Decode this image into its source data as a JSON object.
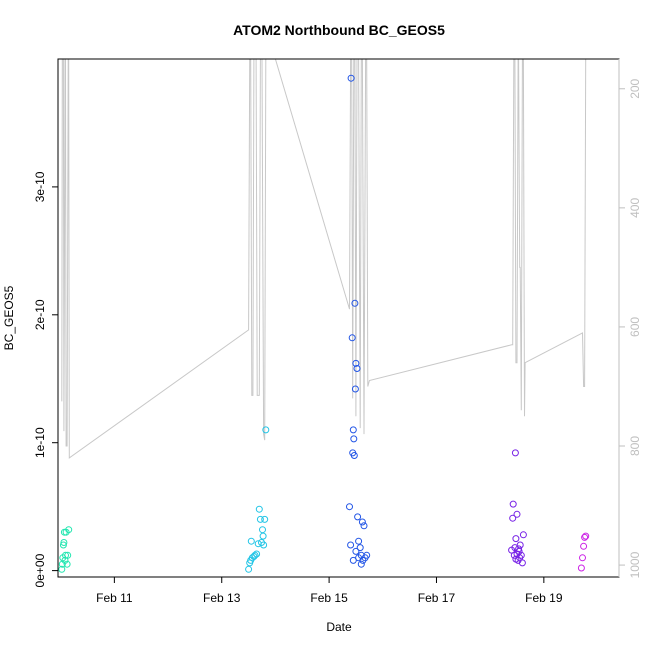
{
  "chart_data": {
    "type": "scatter",
    "title": "ATOM2 Northbound BC_GEOS5",
    "xlabel": "Date",
    "ylabel": "BC_GEOS5",
    "x_ticks": [
      "Feb 11",
      "Feb 13",
      "Feb 15",
      "Feb 17",
      "Feb 19"
    ],
    "y_ticks": [
      "0e+00",
      "1e-10",
      "2e-10",
      "3e-10"
    ],
    "right_ticks": [
      "200",
      "400",
      "600",
      "800",
      "1000"
    ],
    "xlim": [
      9.95,
      20.4
    ],
    "ylim": [
      -5e-12,
      4e-10
    ],
    "right_ylim": [
      1020,
      150
    ],
    "right_axis_inverted": true,
    "grid": false,
    "colors": {
      "background": "#ffffff",
      "pressure_line": "#c8c8c8",
      "axis": "#000000",
      "right_axis": "#bfbfbf"
    },
    "scatter_series": [
      {
        "color": "#22e6b0",
        "points": [
          [
            10.02,
            1e-12
          ],
          [
            10.03,
            5e-12
          ],
          [
            10.04,
            1e-11
          ],
          [
            10.05,
            2e-11
          ],
          [
            10.06,
            2.2e-11
          ],
          [
            10.07,
            3e-11
          ],
          [
            10.08,
            8e-12
          ],
          [
            10.09,
            1.2e-11
          ],
          [
            10.1,
            3e-11
          ],
          [
            10.12,
            5e-12
          ],
          [
            10.13,
            1.2e-11
          ],
          [
            10.15,
            3.2e-11
          ]
        ]
      },
      {
        "color": "#22c5e6",
        "points": [
          [
            13.5,
            1e-12
          ],
          [
            13.52,
            6e-12
          ],
          [
            13.54,
            8e-12
          ],
          [
            13.55,
            2.3e-11
          ],
          [
            13.57,
            1e-11
          ],
          [
            13.6,
            1.1e-11
          ],
          [
            13.62,
            1.2e-11
          ],
          [
            13.65,
            1.3e-11
          ],
          [
            13.68,
            2.1e-11
          ],
          [
            13.7,
            4.8e-11
          ],
          [
            13.72,
            4e-11
          ],
          [
            13.74,
            2.2e-11
          ],
          [
            13.76,
            3.2e-11
          ],
          [
            13.77,
            2.7e-11
          ],
          [
            13.78,
            2e-11
          ],
          [
            13.8,
            4e-11
          ],
          [
            13.82,
            1.1e-10
          ]
        ]
      },
      {
        "color": "#2255e6",
        "points": [
          [
            15.38,
            5e-11
          ],
          [
            15.4,
            2e-11
          ],
          [
            15.41,
            3.85e-10
          ],
          [
            15.43,
            1.82e-10
          ],
          [
            15.44,
            9.2e-11
          ],
          [
            15.45,
            1.1e-10
          ],
          [
            15.46,
            1.03e-10
          ],
          [
            15.47,
            9e-11
          ],
          [
            15.48,
            2.09e-10
          ],
          [
            15.49,
            1.42e-10
          ],
          [
            15.5,
            1.62e-10
          ],
          [
            15.52,
            1.58e-10
          ],
          [
            15.53,
            4.2e-11
          ],
          [
            15.55,
            2.3e-11
          ],
          [
            15.58,
            1.8e-11
          ],
          [
            15.6,
            1.2e-11
          ],
          [
            15.62,
            3.8e-11
          ],
          [
            15.63,
            8e-12
          ],
          [
            15.65,
            3.5e-11
          ],
          [
            15.67,
            1e-11
          ],
          [
            15.45,
            8e-12
          ],
          [
            15.5,
            1.5e-11
          ],
          [
            15.55,
            1e-11
          ],
          [
            15.6,
            5e-12
          ],
          [
            15.7,
            1.2e-11
          ]
        ]
      },
      {
        "color": "#7722e6",
        "points": [
          [
            18.4,
            1.6e-11
          ],
          [
            18.42,
            4.1e-11
          ],
          [
            18.43,
            5.2e-11
          ],
          [
            18.45,
            1.2e-11
          ],
          [
            18.46,
            1.8e-11
          ],
          [
            18.47,
            9.2e-11
          ],
          [
            18.48,
            2.5e-11
          ],
          [
            18.5,
            4.4e-11
          ],
          [
            18.52,
            8e-12
          ],
          [
            18.54,
            1.5e-11
          ],
          [
            18.55,
            1e-11
          ],
          [
            18.56,
            2e-11
          ],
          [
            18.58,
            1.2e-11
          ],
          [
            18.6,
            6e-12
          ],
          [
            18.62,
            2.8e-11
          ],
          [
            18.48,
            9e-12
          ],
          [
            18.5,
            1.3e-11
          ],
          [
            18.53,
            1.7e-11
          ]
        ]
      },
      {
        "color": "#cc22e6",
        "points": [
          [
            19.7,
            2e-12
          ],
          [
            19.72,
            1e-11
          ],
          [
            19.74,
            1.9e-11
          ],
          [
            19.76,
            2.6e-11
          ],
          [
            19.78,
            2.7e-11
          ]
        ]
      }
    ],
    "pressure_line": [
      [
        10.02,
        725
      ],
      [
        10.03,
        150
      ],
      [
        10.05,
        150
      ],
      [
        10.06,
        775
      ],
      [
        10.07,
        530
      ],
      [
        10.08,
        150
      ],
      [
        10.09,
        150
      ],
      [
        10.1,
        800
      ],
      [
        10.12,
        800
      ],
      [
        10.14,
        150
      ],
      [
        10.15,
        150
      ],
      [
        10.16,
        820
      ],
      [
        13.5,
        605
      ],
      [
        13.52,
        150
      ],
      [
        13.54,
        150
      ],
      [
        13.56,
        715
      ],
      [
        13.58,
        715
      ],
      [
        13.6,
        150
      ],
      [
        13.64,
        150
      ],
      [
        13.66,
        715
      ],
      [
        13.7,
        715
      ],
      [
        13.72,
        150
      ],
      [
        13.75,
        150
      ],
      [
        13.78,
        780
      ],
      [
        13.8,
        790
      ],
      [
        13.82,
        150
      ],
      [
        13.85,
        150
      ],
      [
        14.0,
        150
      ],
      [
        15.38,
        570
      ],
      [
        15.4,
        150
      ],
      [
        15.42,
        150
      ],
      [
        15.44,
        720
      ],
      [
        15.46,
        150
      ],
      [
        15.48,
        150
      ],
      [
        15.5,
        750
      ],
      [
        15.52,
        150
      ],
      [
        15.55,
        150
      ],
      [
        15.58,
        770
      ],
      [
        15.6,
        150
      ],
      [
        15.62,
        150
      ],
      [
        15.65,
        780
      ],
      [
        15.68,
        150
      ],
      [
        15.7,
        150
      ],
      [
        15.72,
        700
      ],
      [
        15.75,
        690
      ],
      [
        18.4,
        630
      ],
      [
        18.42,
        630
      ],
      [
        18.44,
        150
      ],
      [
        18.46,
        150
      ],
      [
        18.48,
        660
      ],
      [
        18.5,
        660
      ],
      [
        18.52,
        150
      ],
      [
        18.53,
        150
      ],
      [
        18.55,
        500
      ],
      [
        18.56,
        500
      ],
      [
        18.58,
        740
      ],
      [
        18.6,
        150
      ],
      [
        18.62,
        150
      ],
      [
        18.64,
        750
      ],
      [
        18.65,
        660
      ],
      [
        19.72,
        610
      ],
      [
        19.74,
        700
      ],
      [
        19.76,
        700
      ],
      [
        19.78,
        150
      ],
      [
        19.8,
        150
      ]
    ]
  }
}
